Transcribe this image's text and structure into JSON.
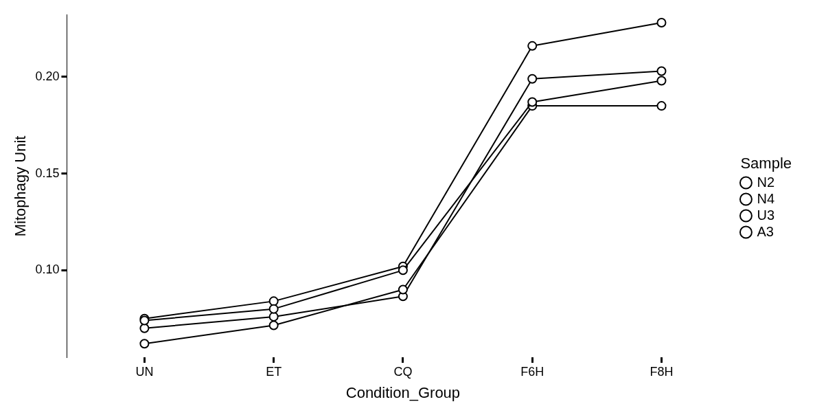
{
  "chart_data": {
    "type": "line",
    "xlabel": "Condition_Group",
    "ylabel": "Mitophagy Unit",
    "legend_title": "Sample",
    "categories": [
      "UN",
      "ET",
      "CQ",
      "F6H",
      "F8H"
    ],
    "series": [
      {
        "name": "N2",
        "color": "#000000",
        "values": [
          0.074,
          0.08,
          0.1,
          0.187,
          0.198
        ]
      },
      {
        "name": "N4",
        "color": "#000000",
        "values": [
          0.062,
          0.0715,
          0.09,
          0.185,
          0.185
        ]
      },
      {
        "name": "U3",
        "color": "#000000",
        "values": [
          0.075,
          0.084,
          0.102,
          0.216,
          0.228
        ]
      },
      {
        "name": "A3",
        "color": "#000000",
        "values": [
          0.07,
          0.076,
          0.0865,
          0.199,
          0.203
        ]
      }
    ],
    "ylim": [
      0.055,
      0.232
    ],
    "yticks": [
      {
        "value": 0.1,
        "label": "0.10"
      },
      {
        "value": 0.15,
        "label": "0.15"
      },
      {
        "value": 0.2,
        "label": "0.20"
      }
    ],
    "grid": false,
    "legend": "right",
    "marker": "circle",
    "line_style": "solid"
  }
}
